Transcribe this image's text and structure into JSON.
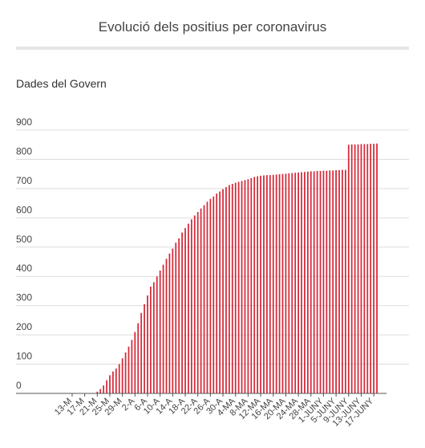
{
  "title": "Evolució dels positius per coronavirus",
  "subtitle": "Dades del Govern",
  "colors": {
    "bar": "#d42a3a",
    "grid": "#dddddd",
    "axis": "#555555",
    "text": "#444444"
  },
  "chart_data": {
    "type": "bar",
    "title": "Evolució dels positius per coronavirus",
    "subtitle": "Dades del Govern",
    "ylim": [
      0,
      900
    ],
    "yticks": [
      0,
      100,
      200,
      300,
      400,
      500,
      600,
      700,
      800,
      900
    ],
    "grid": true,
    "tick_labels": [
      "13-M",
      "17-M",
      "21-M",
      "25-M",
      "29-M",
      "2-A",
      "6-A",
      "10-A",
      "14-A",
      "18-A",
      "22-A",
      "26-A",
      "30-A",
      "4-MA",
      "8-MA",
      "12-MA",
      "16-MA",
      "20-MA",
      "24-MA",
      "28-MA",
      "1-JUNY",
      "5-JUNY",
      "9-JUNY",
      "13-JUNY",
      "17-JUNY"
    ],
    "categories": [
      "13-M",
      "14-M",
      "15-M",
      "16-M",
      "17-M",
      "18-M",
      "19-M",
      "20-M",
      "21-M",
      "22-M",
      "23-M",
      "24-M",
      "25-M",
      "26-M",
      "27-M",
      "28-M",
      "29-M",
      "30-M",
      "31-M",
      "1-A",
      "2-A",
      "3-A",
      "4-A",
      "5-A",
      "6-A",
      "7-A",
      "8-A",
      "9-A",
      "10-A",
      "11-A",
      "12-A",
      "13-A",
      "14-A",
      "15-A",
      "16-A",
      "17-A",
      "18-A",
      "19-A",
      "20-A",
      "21-A",
      "22-A",
      "23-A",
      "24-A",
      "25-A",
      "26-A",
      "27-A",
      "28-A",
      "29-A",
      "30-A",
      "1-MA",
      "2-MA",
      "3-MA",
      "4-MA",
      "5-MA",
      "6-MA",
      "7-MA",
      "8-MA",
      "9-MA",
      "10-MA",
      "11-MA",
      "12-MA",
      "13-MA",
      "14-MA",
      "15-MA",
      "16-MA",
      "17-MA",
      "18-MA",
      "19-MA",
      "20-MA",
      "21-MA",
      "22-MA",
      "23-MA",
      "24-MA",
      "25-MA",
      "26-MA",
      "27-MA",
      "28-MA",
      "29-MA",
      "30-MA",
      "31-MA",
      "1-JUNY",
      "2-JUNY",
      "3-JUNY",
      "4-JUNY",
      "5-JUNY",
      "6-JUNY",
      "7-JUNY",
      "8-JUNY",
      "9-JUNY",
      "10-JUNY",
      "11-JUNY",
      "12-JUNY",
      "13-JUNY",
      "14-JUNY",
      "15-JUNY",
      "16-JUNY",
      "17-JUNY",
      "18-JUNY"
    ],
    "values": [
      0,
      0,
      0,
      0,
      0,
      0,
      0,
      0,
      6,
      15,
      27,
      45,
      62,
      75,
      85,
      100,
      120,
      140,
      160,
      183,
      210,
      240,
      275,
      305,
      335,
      365,
      380,
      400,
      420,
      440,
      460,
      478,
      495,
      515,
      530,
      550,
      565,
      580,
      595,
      608,
      620,
      632,
      643,
      655,
      665,
      673,
      683,
      690,
      698,
      705,
      712,
      716,
      720,
      723,
      726,
      729,
      732,
      736,
      740,
      742,
      744,
      745,
      746,
      746,
      747,
      748,
      749,
      750,
      751,
      752,
      753,
      754,
      755,
      756,
      757,
      758,
      759,
      759,
      760,
      760,
      761,
      761,
      762,
      762,
      763,
      763,
      764,
      764,
      850,
      851,
      851,
      851,
      852,
      852,
      852,
      853,
      853,
      854
    ]
  }
}
